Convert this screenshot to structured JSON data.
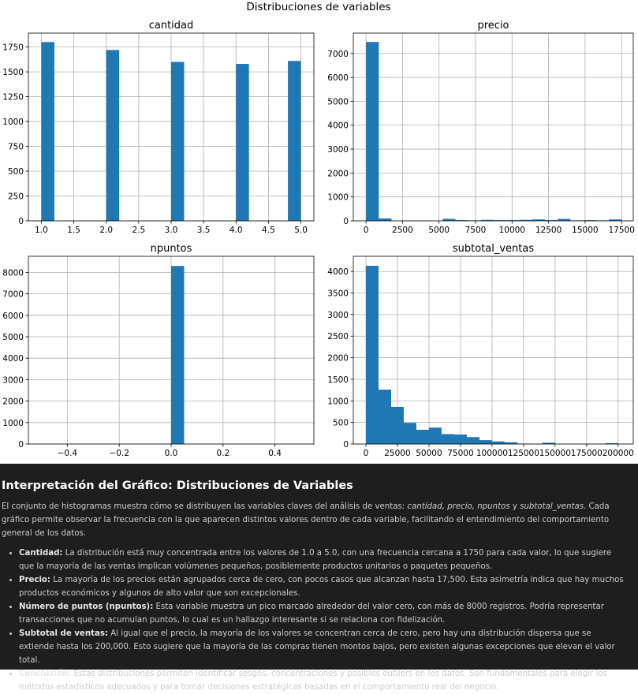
{
  "figure": {
    "suptitle": "Distribuciones de variables"
  },
  "chart_data": [
    {
      "type": "histogram",
      "title": "cantidad",
      "xlim": [
        0.8,
        5.2
      ],
      "ylim": [
        0,
        1890
      ],
      "xticks": [
        1.0,
        1.5,
        2.0,
        2.5,
        3.0,
        3.5,
        4.0,
        4.5,
        5.0
      ],
      "xtick_labels": [
        "1.0",
        "1.5",
        "2.0",
        "2.5",
        "3.0",
        "3.5",
        "4.0",
        "4.5",
        "5.0"
      ],
      "yticks": [
        0,
        250,
        500,
        750,
        1000,
        1250,
        1500,
        1750
      ],
      "ytick_labels": [
        "0",
        "250",
        "500",
        "750",
        "1000",
        "1250",
        "1500",
        "1750"
      ],
      "bin_edges": [
        1.0,
        1.2,
        1.4,
        1.6,
        1.8,
        2.0,
        2.2,
        2.4,
        2.6,
        2.8,
        3.0,
        3.2,
        3.4,
        3.6,
        3.8,
        4.0,
        4.2,
        4.4,
        4.6,
        4.8,
        5.0
      ],
      "counts": [
        1800,
        0,
        0,
        0,
        0,
        1720,
        0,
        0,
        0,
        0,
        1600,
        0,
        0,
        0,
        0,
        1580,
        0,
        0,
        0,
        1610
      ],
      "grid": true,
      "bar_color": "#1f77b4"
    },
    {
      "type": "histogram",
      "title": "precio",
      "xlim": [
        -870,
        18300
      ],
      "ylim": [
        0,
        7850
      ],
      "xticks": [
        0,
        2500,
        5000,
        7500,
        10000,
        12500,
        15000,
        17500
      ],
      "xtick_labels": [
        "0",
        "2500",
        "5000",
        "7500",
        "10000",
        "12500",
        "15000",
        "17500"
      ],
      "yticks": [
        0,
        1000,
        2000,
        3000,
        4000,
        5000,
        6000,
        7000
      ],
      "ytick_labels": [
        "0",
        "1000",
        "2000",
        "3000",
        "4000",
        "5000",
        "6000",
        "7000"
      ],
      "bin_edges": [
        0,
        875,
        1750,
        2625,
        3500,
        4375,
        5250,
        6125,
        7000,
        7875,
        8750,
        9625,
        10500,
        11375,
        12250,
        13125,
        14000,
        14875,
        15750,
        16625,
        17500
      ],
      "counts": [
        7480,
        100,
        0,
        0,
        0,
        0,
        80,
        30,
        20,
        40,
        30,
        30,
        40,
        60,
        30,
        80,
        20,
        30,
        20,
        60
      ],
      "grid": true,
      "bar_color": "#1f77b4"
    },
    {
      "type": "histogram",
      "title": "npuntos",
      "xlim": [
        -0.55,
        0.55
      ],
      "ylim": [
        0,
        8750
      ],
      "xticks": [
        -0.4,
        -0.2,
        0.0,
        0.2,
        0.4
      ],
      "xtick_labels": [
        "−0.4",
        "−0.2",
        "0.0",
        "0.2",
        "0.4"
      ],
      "yticks": [
        0,
        1000,
        2000,
        3000,
        4000,
        5000,
        6000,
        7000,
        8000
      ],
      "ytick_labels": [
        "0",
        "1000",
        "2000",
        "3000",
        "4000",
        "5000",
        "6000",
        "7000",
        "8000"
      ],
      "bin_edges": [
        -0.5,
        -0.45,
        -0.4,
        -0.35,
        -0.3,
        -0.25,
        -0.2,
        -0.15,
        -0.1,
        -0.05,
        0.0,
        0.05,
        0.1,
        0.15,
        0.2,
        0.25,
        0.3,
        0.35,
        0.4,
        0.45,
        0.5
      ],
      "counts": [
        0,
        0,
        0,
        0,
        0,
        0,
        0,
        0,
        0,
        0,
        8300,
        0,
        0,
        0,
        0,
        0,
        0,
        0,
        0,
        0
      ],
      "bar_offset": -0.0,
      "grid": true,
      "bar_color": "#1f77b4"
    },
    {
      "type": "histogram",
      "title": "subtotal_ventas",
      "xlim": [
        -10000,
        212000
      ],
      "ylim": [
        0,
        4350
      ],
      "xticks": [
        0,
        25000,
        50000,
        75000,
        100000,
        125000,
        150000,
        175000,
        200000
      ],
      "xtick_labels": [
        "0",
        "25000",
        "50000",
        "75000",
        "100000",
        "125000",
        "150000",
        "175000",
        "200000"
      ],
      "yticks": [
        0,
        500,
        1000,
        1500,
        2000,
        2500,
        3000,
        3500,
        4000
      ],
      "ytick_labels": [
        "0",
        "500",
        "1000",
        "1500",
        "2000",
        "2500",
        "3000",
        "3500",
        "4000"
      ],
      "bin_edges": [
        0,
        10000,
        20000,
        30000,
        40000,
        50000,
        60000,
        70000,
        80000,
        90000,
        100000,
        110000,
        120000,
        130000,
        140000,
        150000,
        160000,
        170000,
        180000,
        190000,
        200000
      ],
      "counts": [
        4130,
        1260,
        860,
        490,
        330,
        380,
        230,
        220,
        160,
        90,
        60,
        40,
        10,
        0,
        30,
        0,
        0,
        0,
        0,
        20
      ],
      "grid": true,
      "bar_color": "#1f77b4"
    }
  ],
  "notes": {
    "heading": "Interpretación del Gráfico: Distribuciones de Variables",
    "intro_a": "El conjunto de histogramas muestra cómo se distribuyen las variables claves del análisis de ventas: ",
    "intro_vars": "cantidad, precio, npuntos",
    "intro_y": " y ",
    "intro_var_last": "subtotal_ventas",
    "intro_b": ". Cada gráfico permite observar la frecuencia con la que aparecen distintos valores dentro de cada variable, facilitando el entendimiento del comportamiento general de los datos.",
    "items": [
      {
        "label": "Cantidad:",
        "text": " La distribución está muy concentrada entre los valores de 1.0 a 5.0, con una frecuencia cercana a 1750 para cada valor, lo que sugiere que la mayoría de las ventas implican volúmenes pequeños, posiblemente productos unitarios o paquetes pequeños."
      },
      {
        "label": "Precio:",
        "text": " La mayoría de los precios están agrupados cerca de cero, con pocos casos que alcanzan hasta 17,500. Esta asimetría indica que hay muchos productos económicos y algunos de alto valor que son excepcionales."
      },
      {
        "label": "Número de puntos (npuntos):",
        "text": " Esta variable muestra un pico marcado alrededor del valor cero, con más de 8000 registros. Podría representar transacciones que no acumulan puntos, lo cual es un hallazgo interesante si se relaciona con fidelización."
      },
      {
        "label": "Subtotal de ventas:",
        "text": " Al igual que el precio, la mayoría de los valores se concentran cerca de cero, pero hay una distribución dispersa que se extiende hasta los 200,000. Esto sugiere que la mayoría de las compras tienen montos bajos, pero existen algunas excepciones que elevan el valor total."
      },
      {
        "label": "Conclusión:",
        "text": " Estas distribuciones permiten identificar sesgos, concentraciones y posibles outliers en los datos. Son fundamentales para elegir los métodos estadísticos adecuados y para tomar decisiones estratégicas basadas en el comportamiento real del negocio."
      }
    ]
  }
}
